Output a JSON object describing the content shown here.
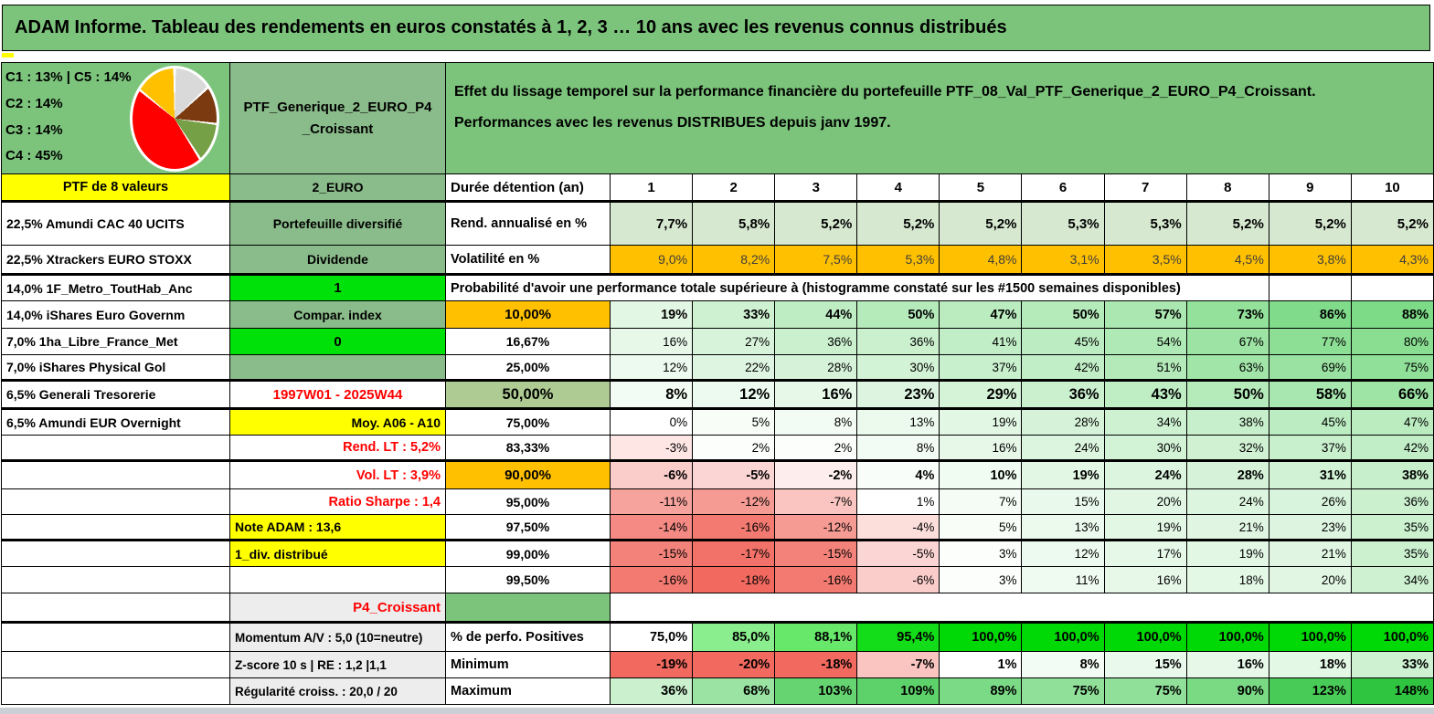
{
  "title": "ADAM Informe. Tableau des rendements en euros constatés à 1, 2, 3 … 10 ans avec les revenus connus distribués",
  "colors": {
    "header_green": "#7CC47C",
    "column_green": "#8ABB8A",
    "bright_green": "#00E10A",
    "annualized_green": "#D6E8D0",
    "label_green": "#AECB93",
    "orange": "#FFC000",
    "yellow": "#FFFF00",
    "gray": "#EDEDED",
    "negative_red": "#F1695F",
    "positive_green": "#30C540",
    "perfo_green": "#00D906",
    "red_text": "#FF0000"
  },
  "pie": {
    "legend_lines": [
      "C1 : 13% | C5 : 14%",
      "C2 : 14%",
      "C3 : 14%",
      "C4 : 45%"
    ],
    "slices": [
      {
        "label": "C1",
        "value": 13,
        "color": "#D9D9D9"
      },
      {
        "label": "C2",
        "value": 14,
        "color": "#7B3A10"
      },
      {
        "label": "C3",
        "value": 14,
        "color": "#76A045"
      },
      {
        "label": "C4",
        "value": 45,
        "color": "#FF0000"
      },
      {
        "label": "C5",
        "value": 14,
        "color": "#FFC000"
      }
    ]
  },
  "portfolio": {
    "name_line1": "PTF_Generique_2_EURO_P4",
    "name_line2": "_Croissant"
  },
  "main_table": {
    "description_lines": [
      "Effet du lissage temporel sur la performance financière du portefeuille PTF_08_Val_PTF_Generique_2_EURO_P4_Croissant.",
      "Performances avec les revenus DISTRIBUES depuis janv 1997."
    ]
  },
  "left_column": [
    "PTF de 8 valeurs",
    "22,5% Amundi CAC 40 UCITS",
    "22,5% Xtrackers EURO STOXX",
    "14,0% 1F_Metro_ToutHab_Anc",
    "14,0% iShares Euro Governm",
    "7,0% 1ha_Libre_France_Met",
    "7,0% iShares Physical Gol",
    "6,5% Generali Tresorerie",
    "6,5% Amundi EUR Overnight",
    "",
    "",
    "",
    "",
    "",
    "",
    "",
    "",
    "",
    ""
  ],
  "mid_column": [
    {
      "text": "2_EURO",
      "style": "greenC"
    },
    {
      "text": "Portefeuille diversifié",
      "style": "greenC"
    },
    {
      "text": "Dividende",
      "style": "greenC"
    },
    {
      "text": "1",
      "style": "brightC"
    },
    {
      "text": "Compar. index",
      "style": "greenC"
    },
    {
      "text": "0",
      "style": "brightC"
    },
    {
      "text": "",
      "style": "greenC"
    },
    {
      "text": "1997W01 - 2025W44",
      "style": "redCenter"
    },
    {
      "text": "Moy. A06 - A10",
      "style": "yellowRight"
    },
    {
      "text": "Rend. LT : 5,2%",
      "style": "redRight"
    },
    {
      "text": "Vol. LT : 3,9%",
      "style": "redRight"
    },
    {
      "text": "Ratio Sharpe : 1,4",
      "style": "redRight"
    },
    {
      "text": "Note ADAM : 13,6",
      "style": "yellowLeft"
    },
    {
      "text": "1_div. distribué",
      "style": "yellowLeft"
    },
    {
      "text": "",
      "style": "plain"
    },
    {
      "text": "P4_Croissant",
      "style": "grayRedRight"
    },
    {
      "text": "Momentum A/V : 5,0 (10=neutre)",
      "style": "grayLeft"
    },
    {
      "text": "Z-score 10 s | RE : 1,2 |1,1",
      "style": "grayLeft"
    },
    {
      "text": "Régularité croiss. : 20,0 / 20",
      "style": "grayLeft"
    }
  ],
  "main_rows": [
    {
      "type": "header",
      "label": "Durée détention (an)",
      "years": [
        "1",
        "2",
        "3",
        "4",
        "5",
        "6",
        "7",
        "8",
        "9",
        "10"
      ]
    },
    {
      "type": "flat",
      "label": "Rend. annualisé en %",
      "bg": "ann",
      "bold": true,
      "values": [
        "7,7%",
        "5,8%",
        "5,2%",
        "5,2%",
        "5,2%",
        "5,3%",
        "5,3%",
        "5,2%",
        "5,2%",
        "5,2%"
      ]
    },
    {
      "type": "flat",
      "label": "Volatilité en %",
      "bg": "orange",
      "bold": false,
      "dark": true,
      "values": [
        "9,0%",
        "8,2%",
        "7,5%",
        "5,3%",
        "4,8%",
        "3,1%",
        "3,5%",
        "4,5%",
        "3,8%",
        "4,3%"
      ]
    },
    {
      "type": "title",
      "text": "Probabilité d'avoir une performance totale supérieure à (histogramme constaté sur les #1500 semaines disponibles)"
    },
    {
      "type": "scale",
      "label": "10,00%",
      "label_style": "orangeL",
      "bold": true,
      "values": [
        "19%",
        "33%",
        "44%",
        "50%",
        "47%",
        "50%",
        "57%",
        "73%",
        "86%",
        "88%"
      ]
    },
    {
      "type": "scale",
      "label": "16,67%",
      "label_style": "whiteC",
      "bold": false,
      "values": [
        "16%",
        "27%",
        "36%",
        "36%",
        "41%",
        "45%",
        "54%",
        "67%",
        "77%",
        "80%"
      ]
    },
    {
      "type": "scale",
      "label": "25,00%",
      "label_style": "whiteC",
      "bold": false,
      "values": [
        "12%",
        "22%",
        "28%",
        "30%",
        "37%",
        "42%",
        "51%",
        "63%",
        "69%",
        "75%"
      ]
    },
    {
      "type": "scale",
      "label": "50,00%",
      "label_style": "greenL",
      "bold": true,
      "big": true,
      "values": [
        "8%",
        "12%",
        "16%",
        "23%",
        "29%",
        "36%",
        "43%",
        "50%",
        "58%",
        "66%"
      ]
    },
    {
      "type": "scale",
      "label": "75,00%",
      "label_style": "whiteC",
      "bold": false,
      "values": [
        "0%",
        "5%",
        "8%",
        "13%",
        "19%",
        "28%",
        "34%",
        "38%",
        "45%",
        "47%"
      ]
    },
    {
      "type": "scale",
      "label": "83,33%",
      "label_style": "whiteC",
      "bold": false,
      "values": [
        "-3%",
        "2%",
        "2%",
        "8%",
        "16%",
        "24%",
        "30%",
        "32%",
        "37%",
        "42%"
      ]
    },
    {
      "type": "scale",
      "label": "90,00%",
      "label_style": "orangeL",
      "bold": true,
      "values": [
        "-6%",
        "-5%",
        "-2%",
        "4%",
        "10%",
        "19%",
        "24%",
        "28%",
        "31%",
        "38%"
      ]
    },
    {
      "type": "scale",
      "label": "95,00%",
      "label_style": "whiteC",
      "bold": false,
      "values": [
        "-11%",
        "-12%",
        "-7%",
        "1%",
        "7%",
        "15%",
        "20%",
        "24%",
        "26%",
        "36%"
      ]
    },
    {
      "type": "scale",
      "label": "97,50%",
      "label_style": "whiteC",
      "bold": false,
      "values": [
        "-14%",
        "-16%",
        "-12%",
        "-4%",
        "5%",
        "13%",
        "19%",
        "21%",
        "23%",
        "35%"
      ]
    },
    {
      "type": "scale",
      "label": "99,00%",
      "label_style": "whiteC",
      "bold": false,
      "values": [
        "-15%",
        "-17%",
        "-15%",
        "-5%",
        "3%",
        "12%",
        "17%",
        "19%",
        "21%",
        "35%"
      ]
    },
    {
      "type": "scale",
      "label": "99,50%",
      "label_style": "whiteC",
      "bold": false,
      "values": [
        "-16%",
        "-18%",
        "-16%",
        "-6%",
        "3%",
        "11%",
        "16%",
        "18%",
        "20%",
        "34%"
      ]
    },
    {
      "type": "p4"
    },
    {
      "type": "scale",
      "mode": "perfo",
      "label": "% de perfo. Positives",
      "label_style": "whiteL",
      "bold": true,
      "values": [
        "75,0%",
        "85,0%",
        "88,1%",
        "95,4%",
        "100,0%",
        "100,0%",
        "100,0%",
        "100,0%",
        "100,0%",
        "100,0%"
      ]
    },
    {
      "type": "scale",
      "label": "Minimum",
      "label_style": "whiteL",
      "bold": true,
      "values": [
        "-19%",
        "-20%",
        "-18%",
        "-7%",
        "1%",
        "8%",
        "15%",
        "16%",
        "18%",
        "33%"
      ]
    },
    {
      "type": "scale",
      "label": "Maximum",
      "label_style": "whiteL",
      "bold": true,
      "values": [
        "36%",
        "68%",
        "103%",
        "109%",
        "89%",
        "75%",
        "75%",
        "90%",
        "123%",
        "148%"
      ]
    }
  ]
}
